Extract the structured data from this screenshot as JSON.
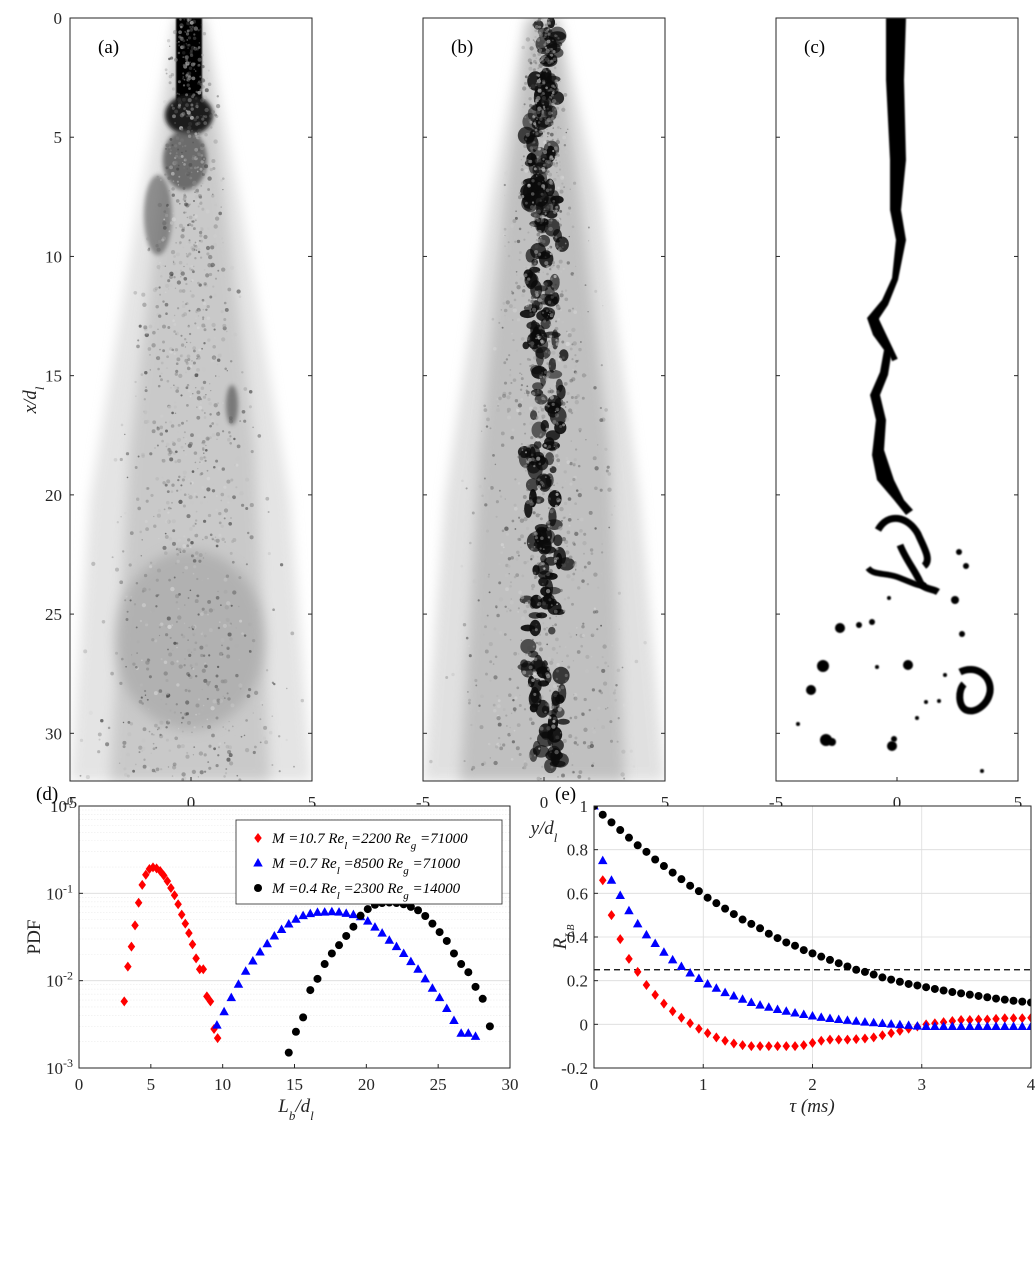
{
  "top_panels": {
    "ylabel": "x/d_l",
    "yticks": [
      "0",
      "5",
      "10",
      "15",
      "20",
      "25",
      "30"
    ],
    "xticks": [
      "-5",
      "0",
      "5"
    ],
    "xlabel": "y/d_l",
    "labels": [
      "(a)",
      "(b)",
      "(c)"
    ]
  },
  "chart_data": [
    {
      "type": "scatter",
      "panel_label": "(d)",
      "xlabel": "L_b/d_l",
      "ylabel": "PDF",
      "xlim": [
        0,
        30
      ],
      "ylim": [
        0.001,
        1
      ],
      "yscale": "log",
      "grid": true,
      "legend_position": "top-right",
      "xticks": [
        "0",
        "5",
        "10",
        "15",
        "20",
        "25",
        "30"
      ],
      "yticks": [
        "10^-3",
        "10^-2",
        "10^-1",
        "10^0"
      ],
      "series": [
        {
          "name": "M =10.7 Re_l =2200 Re_g =71000",
          "color": "#ff0000",
          "marker": "diamond",
          "x": [
            3.15,
            3.4,
            3.65,
            3.9,
            4.15,
            4.4,
            4.65,
            4.9,
            5.15,
            5.4,
            5.65,
            5.9,
            6.15,
            6.4,
            6.65,
            6.9,
            7.15,
            7.4,
            7.65,
            7.9,
            8.15,
            8.4,
            8.65,
            8.9,
            9.15,
            9.4,
            9.65
          ],
          "y": [
            0.0058,
            0.0145,
            0.0245,
            0.043,
            0.078,
            0.125,
            0.163,
            0.19,
            0.198,
            0.193,
            0.18,
            0.16,
            0.138,
            0.115,
            0.095,
            0.075,
            0.057,
            0.045,
            0.035,
            0.026,
            0.018,
            0.0135,
            0.0135,
            0.0066,
            0.0058,
            0.0028,
            0.0022
          ]
        },
        {
          "name": "M =0.7 Re_l =8500 Re_g =71000",
          "color": "#0000ff",
          "marker": "triangle",
          "x": [
            9.6,
            10.1,
            10.6,
            11.1,
            11.6,
            12.1,
            12.6,
            13.1,
            13.6,
            14.1,
            14.6,
            15.1,
            15.6,
            16.1,
            16.6,
            17.1,
            17.6,
            18.1,
            18.6,
            19.1,
            19.6,
            20.1,
            20.6,
            21.1,
            21.6,
            22.1,
            22.6,
            23.1,
            23.6,
            24.1,
            24.6,
            25.1,
            25.6,
            26.1,
            26.6,
            27.1,
            27.6
          ],
          "y": [
            0.0031,
            0.0044,
            0.0064,
            0.0091,
            0.0128,
            0.0168,
            0.0213,
            0.0265,
            0.0325,
            0.0385,
            0.0445,
            0.0505,
            0.0555,
            0.0585,
            0.0605,
            0.061,
            0.0615,
            0.061,
            0.059,
            0.057,
            0.054,
            0.048,
            0.041,
            0.035,
            0.029,
            0.0245,
            0.0205,
            0.0165,
            0.0135,
            0.0105,
            0.0082,
            0.0064,
            0.0048,
            0.0035,
            0.0025,
            0.0025,
            0.0023
          ]
        },
        {
          "name": "M =0.4 Re_l =2300 Re_g =14000",
          "color": "#000000",
          "marker": "circle",
          "x": [
            14.6,
            15.1,
            15.6,
            16.1,
            16.6,
            17.1,
            17.6,
            18.1,
            18.6,
            19.1,
            19.6,
            20.1,
            20.6,
            21.1,
            21.6,
            22.1,
            22.6,
            23.1,
            23.6,
            24.1,
            24.6,
            25.1,
            25.6,
            26.1,
            26.6,
            27.1,
            27.6,
            28.1,
            28.6
          ],
          "y": [
            0.0015,
            0.0026,
            0.0038,
            0.0078,
            0.0105,
            0.0155,
            0.0205,
            0.0255,
            0.0325,
            0.0415,
            0.0555,
            0.066,
            0.074,
            0.0775,
            0.0785,
            0.0775,
            0.075,
            0.07,
            0.064,
            0.055,
            0.045,
            0.036,
            0.0285,
            0.0205,
            0.0155,
            0.0125,
            0.0085,
            0.0062,
            0.003
          ]
        }
      ]
    },
    {
      "type": "scatter",
      "panel_label": "(e)",
      "xlabel": "τ (ms)",
      "ylabel": "R_L_B",
      "xlim": [
        0,
        4
      ],
      "ylim": [
        -0.2,
        1
      ],
      "grid": true,
      "xticks": [
        "0",
        "1",
        "2",
        "3",
        "4"
      ],
      "yticks": [
        "-0.2",
        "0",
        "0.2",
        "0.4",
        "0.6",
        "0.8",
        "1"
      ],
      "reference_line": {
        "y": 0.25,
        "style": "dashed"
      },
      "series": [
        {
          "name": "M =10.7 Re_l =2200 Re_g =71000",
          "color": "#ff0000",
          "marker": "diamond",
          "x": [
            0,
            0.08,
            0.16,
            0.24,
            0.32,
            0.4,
            0.48,
            0.56,
            0.64,
            0.72,
            0.8,
            0.88,
            0.96,
            1.04,
            1.12,
            1.2,
            1.28,
            1.36,
            1.44,
            1.52,
            1.6,
            1.68,
            1.76,
            1.84,
            1.92,
            2.0,
            2.08,
            2.16,
            2.24,
            2.32,
            2.4,
            2.48,
            2.56,
            2.64,
            2.72,
            2.8,
            2.88,
            2.96,
            3.04,
            3.12,
            3.2,
            3.28,
            3.36,
            3.44,
            3.52,
            3.6,
            3.68,
            3.76,
            3.84,
            3.92,
            4.0
          ],
          "y": [
            1.0,
            0.66,
            0.5,
            0.39,
            0.3,
            0.24,
            0.18,
            0.135,
            0.095,
            0.06,
            0.03,
            0.005,
            -0.02,
            -0.04,
            -0.06,
            -0.075,
            -0.088,
            -0.095,
            -0.1,
            -0.1,
            -0.1,
            -0.1,
            -0.1,
            -0.1,
            -0.095,
            -0.085,
            -0.075,
            -0.07,
            -0.07,
            -0.07,
            -0.068,
            -0.065,
            -0.06,
            -0.05,
            -0.04,
            -0.03,
            -0.02,
            -0.01,
            0.0,
            0.005,
            0.01,
            0.015,
            0.02,
            0.02,
            0.022,
            0.022,
            0.025,
            0.028,
            0.028,
            0.028,
            0.03
          ]
        },
        {
          "name": "M =0.7 Re_l =8500 Re_g =71000",
          "color": "#0000ff",
          "marker": "triangle",
          "x": [
            0,
            0.08,
            0.16,
            0.24,
            0.32,
            0.4,
            0.48,
            0.56,
            0.64,
            0.72,
            0.8,
            0.88,
            0.96,
            1.04,
            1.12,
            1.2,
            1.28,
            1.36,
            1.44,
            1.52,
            1.6,
            1.68,
            1.76,
            1.84,
            1.92,
            2.0,
            2.08,
            2.16,
            2.24,
            2.32,
            2.4,
            2.48,
            2.56,
            2.64,
            2.72,
            2.8,
            2.88,
            2.96,
            3.04,
            3.12,
            3.2,
            3.28,
            3.36,
            3.44,
            3.52,
            3.6,
            3.68,
            3.76,
            3.84,
            3.92,
            4.0
          ],
          "y": [
            1.0,
            0.75,
            0.66,
            0.59,
            0.52,
            0.46,
            0.41,
            0.37,
            0.33,
            0.295,
            0.265,
            0.235,
            0.21,
            0.185,
            0.165,
            0.145,
            0.13,
            0.115,
            0.1,
            0.088,
            0.078,
            0.068,
            0.06,
            0.052,
            0.045,
            0.038,
            0.032,
            0.027,
            0.022,
            0.018,
            0.014,
            0.01,
            0.007,
            0.004,
            0.001,
            -0.002,
            -0.005,
            -0.008,
            -0.01,
            -0.01,
            -0.01,
            -0.01,
            -0.01,
            -0.01,
            -0.01,
            -0.01,
            -0.01,
            -0.01,
            -0.01,
            -0.01,
            -0.01
          ]
        },
        {
          "name": "M =0.4 Re_l =2300 Re_g =14000",
          "color": "#000000",
          "marker": "circle",
          "x": [
            0,
            0.08,
            0.16,
            0.24,
            0.32,
            0.4,
            0.48,
            0.56,
            0.64,
            0.72,
            0.8,
            0.88,
            0.96,
            1.04,
            1.12,
            1.2,
            1.28,
            1.36,
            1.44,
            1.52,
            1.6,
            1.68,
            1.76,
            1.84,
            1.92,
            2.0,
            2.08,
            2.16,
            2.24,
            2.32,
            2.4,
            2.48,
            2.56,
            2.64,
            2.72,
            2.8,
            2.88,
            2.96,
            3.04,
            3.12,
            3.2,
            3.28,
            3.36,
            3.44,
            3.52,
            3.6,
            3.68,
            3.76,
            3.84,
            3.92,
            4.0
          ],
          "y": [
            1.0,
            0.96,
            0.925,
            0.89,
            0.855,
            0.82,
            0.79,
            0.755,
            0.725,
            0.695,
            0.665,
            0.635,
            0.61,
            0.58,
            0.555,
            0.53,
            0.505,
            0.48,
            0.46,
            0.44,
            0.415,
            0.395,
            0.375,
            0.36,
            0.34,
            0.325,
            0.31,
            0.295,
            0.28,
            0.265,
            0.25,
            0.24,
            0.228,
            0.215,
            0.205,
            0.195,
            0.185,
            0.178,
            0.17,
            0.162,
            0.155,
            0.148,
            0.142,
            0.136,
            0.13,
            0.124,
            0.118,
            0.113,
            0.108,
            0.104,
            0.1
          ]
        }
      ]
    }
  ]
}
